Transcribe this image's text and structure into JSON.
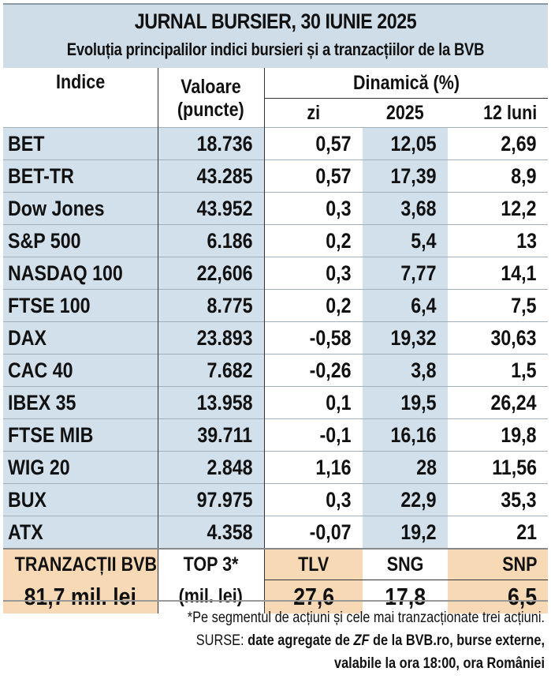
{
  "header": {
    "title": "JURNAL BURSIER, 30 IUNIE 2025",
    "subtitle": "Evoluția principalilor indici bursieri și a tranzacțiilor de la BVB"
  },
  "columns": {
    "indice": "Indice",
    "valoare_1": "Valoare",
    "valoare_2": "(puncte)",
    "dinamica": "Dinamică (%)",
    "zi": "zi",
    "an": "2025",
    "luni": "12 luni"
  },
  "rows": [
    {
      "name": "BET",
      "value": "18.736",
      "zi": "0,57",
      "an": "12,05",
      "luni": "2,69"
    },
    {
      "name": "BET-TR",
      "value": "43.285",
      "zi": "0,57",
      "an": "17,39",
      "luni": "8,9"
    },
    {
      "name": "Dow Jones",
      "value": "43.952",
      "zi": "0,3",
      "an": "3,68",
      "luni": "12,2"
    },
    {
      "name": "S&P 500",
      "value": "6.186",
      "zi": "0,2",
      "an": "5,4",
      "luni": "13"
    },
    {
      "name": "NASDAQ 100",
      "value": "22,606",
      "zi": "0,3",
      "an": "7,77",
      "luni": "14,1"
    },
    {
      "name": "FTSE 100",
      "value": "8.775",
      "zi": "0,2",
      "an": "6,4",
      "luni": "7,5"
    },
    {
      "name": "DAX",
      "value": "23.893",
      "zi": "-0,58",
      "an": "19,32",
      "luni": "30,63"
    },
    {
      "name": "CAC 40",
      "value": "7.682",
      "zi": "-0,26",
      "an": "3,8",
      "luni": "1,5"
    },
    {
      "name": "IBEX 35",
      "value": "13.958",
      "zi": "0,1",
      "an": "19,5",
      "luni": "26,24"
    },
    {
      "name": "FTSE MIB",
      "value": "39.711",
      "zi": "-0,1",
      "an": "16,16",
      "luni": "19,8"
    },
    {
      "name": "WIG 20",
      "value": "2.848",
      "zi": "1,16",
      "an": "28",
      "luni": "11,56"
    },
    {
      "name": "BUX",
      "value": "97.975",
      "zi": "0,3",
      "an": "22,9",
      "luni": "35,3"
    },
    {
      "name": "ATX",
      "value": "4.358",
      "zi": "-0,07",
      "an": "19,2",
      "luni": "21"
    }
  ],
  "bvb": {
    "label": "TRANZACȚII BVB",
    "amount": "81,7 mil. lei",
    "top_label": "TOP 3*",
    "top_unit": "(mil. lei)",
    "stocks": [
      {
        "symbol": "TLV",
        "value": "27,6"
      },
      {
        "symbol": "SNG",
        "value": "17,8"
      },
      {
        "symbol": "SNP",
        "value": "6,5"
      }
    ]
  },
  "footer": {
    "note": "*Pe segmentul de acțiuni și cele mai tranzacționate trei acțiuni.",
    "sources_label": "SURSE:",
    "sources_pre": "date agregate de",
    "sources_zf": "ZF",
    "sources_post": "de la BVB.ro, burse externe,",
    "sources_line2": "valabile la ora 18:00, ora României"
  }
}
